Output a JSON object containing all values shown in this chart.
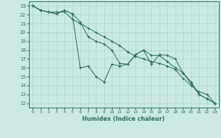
{
  "xlabel": "Humidex (Indice chaleur)",
  "bg_color": "#cce8e3",
  "grid_color": "#aad4c8",
  "line_color": "#2d6e5e",
  "xlim": [
    -0.5,
    23.5
  ],
  "ylim": [
    11.5,
    23.5
  ],
  "xticks": [
    0,
    1,
    2,
    3,
    4,
    5,
    6,
    7,
    8,
    9,
    10,
    11,
    12,
    13,
    14,
    15,
    16,
    17,
    18,
    19,
    20,
    21,
    22,
    23
  ],
  "yticks": [
    12,
    13,
    14,
    15,
    16,
    17,
    18,
    19,
    20,
    21,
    22,
    23
  ],
  "line1_y": [
    23.0,
    22.5,
    22.3,
    22.3,
    22.3,
    21.5,
    21.0,
    20.5,
    20.0,
    19.5,
    19.0,
    18.5,
    17.8,
    17.3,
    17.0,
    16.7,
    16.5,
    16.2,
    15.8,
    14.8,
    14.0,
    13.3,
    13.0,
    12.0
  ],
  "line2_y": [
    23.0,
    22.5,
    22.3,
    22.1,
    22.5,
    22.1,
    16.0,
    16.2,
    15.0,
    14.4,
    16.4,
    16.2,
    16.4,
    17.5,
    18.0,
    16.4,
    17.5,
    17.4,
    17.0,
    15.4,
    14.4,
    13.0,
    12.5,
    12.0
  ],
  "line3_y": [
    23.0,
    22.5,
    22.3,
    22.1,
    22.5,
    22.1,
    21.2,
    19.5,
    19.0,
    18.7,
    18.0,
    16.5,
    16.4,
    17.5,
    18.0,
    17.4,
    17.4,
    16.7,
    16.0,
    15.4,
    14.2,
    13.0,
    12.5,
    12.0
  ]
}
